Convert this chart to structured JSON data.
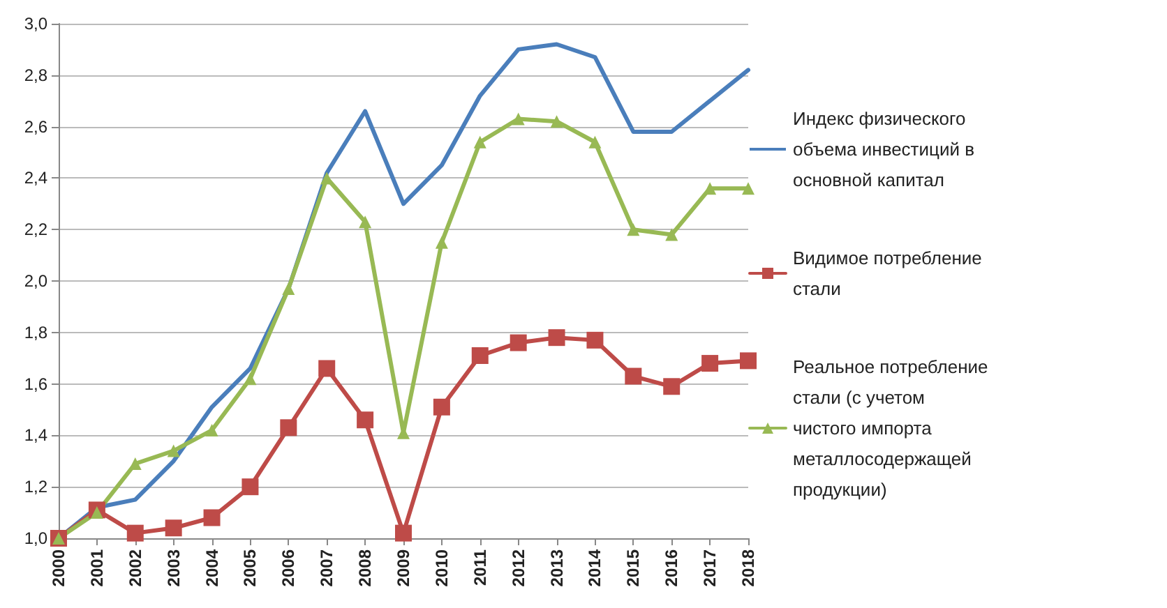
{
  "chart_data": {
    "type": "line",
    "categories": [
      "2000",
      "2001",
      "2002",
      "2003",
      "2004",
      "2005",
      "2006",
      "2007",
      "2008",
      "2009",
      "2010",
      "2011",
      "2012",
      "2013",
      "2014",
      "2015",
      "2016",
      "2017",
      "2018"
    ],
    "series": [
      {
        "name": "Индекс физического объема инвестиций в основной капитал",
        "color": "#4a7ebb",
        "marker": "none",
        "values": [
          1.0,
          1.12,
          1.15,
          1.3,
          1.51,
          1.66,
          1.97,
          2.42,
          2.66,
          2.3,
          2.45,
          2.72,
          2.9,
          2.92,
          2.87,
          2.58,
          2.58,
          2.7,
          2.82
        ]
      },
      {
        "name": "Видимое потребление стали",
        "color": "#be4b48",
        "marker": "square",
        "values": [
          1.0,
          1.11,
          1.02,
          1.04,
          1.08,
          1.2,
          1.43,
          1.66,
          1.46,
          1.02,
          1.51,
          1.71,
          1.76,
          1.78,
          1.77,
          1.63,
          1.59,
          1.68,
          1.69
        ]
      },
      {
        "name": "Реальное потребление стали (с учетом чистого импорта металлосодержащей продукции)",
        "color": "#98b954",
        "marker": "triangle",
        "values": [
          1.0,
          1.1,
          1.29,
          1.34,
          1.42,
          1.62,
          1.97,
          2.4,
          2.23,
          1.41,
          2.15,
          2.54,
          2.63,
          2.62,
          2.54,
          2.2,
          2.18,
          2.36,
          2.36
        ]
      }
    ],
    "ylim": [
      1.0,
      3.0
    ],
    "yticks": [
      {
        "value": 1.0,
        "label": "1,0"
      },
      {
        "value": 1.2,
        "label": "1,2"
      },
      {
        "value": 1.4,
        "label": "1,4"
      },
      {
        "value": 1.6,
        "label": "1,6"
      },
      {
        "value": 1.8,
        "label": "1,8"
      },
      {
        "value": 2.0,
        "label": "2,0"
      },
      {
        "value": 2.2,
        "label": "2,2"
      },
      {
        "value": 2.4,
        "label": "2,4"
      },
      {
        "value": 2.6,
        "label": "2,6"
      },
      {
        "value": 2.8,
        "label": "2,8"
      },
      {
        "value": 3.0,
        "label": "3,0"
      }
    ],
    "grid": "y",
    "legend": "right",
    "line_style": "solid"
  }
}
